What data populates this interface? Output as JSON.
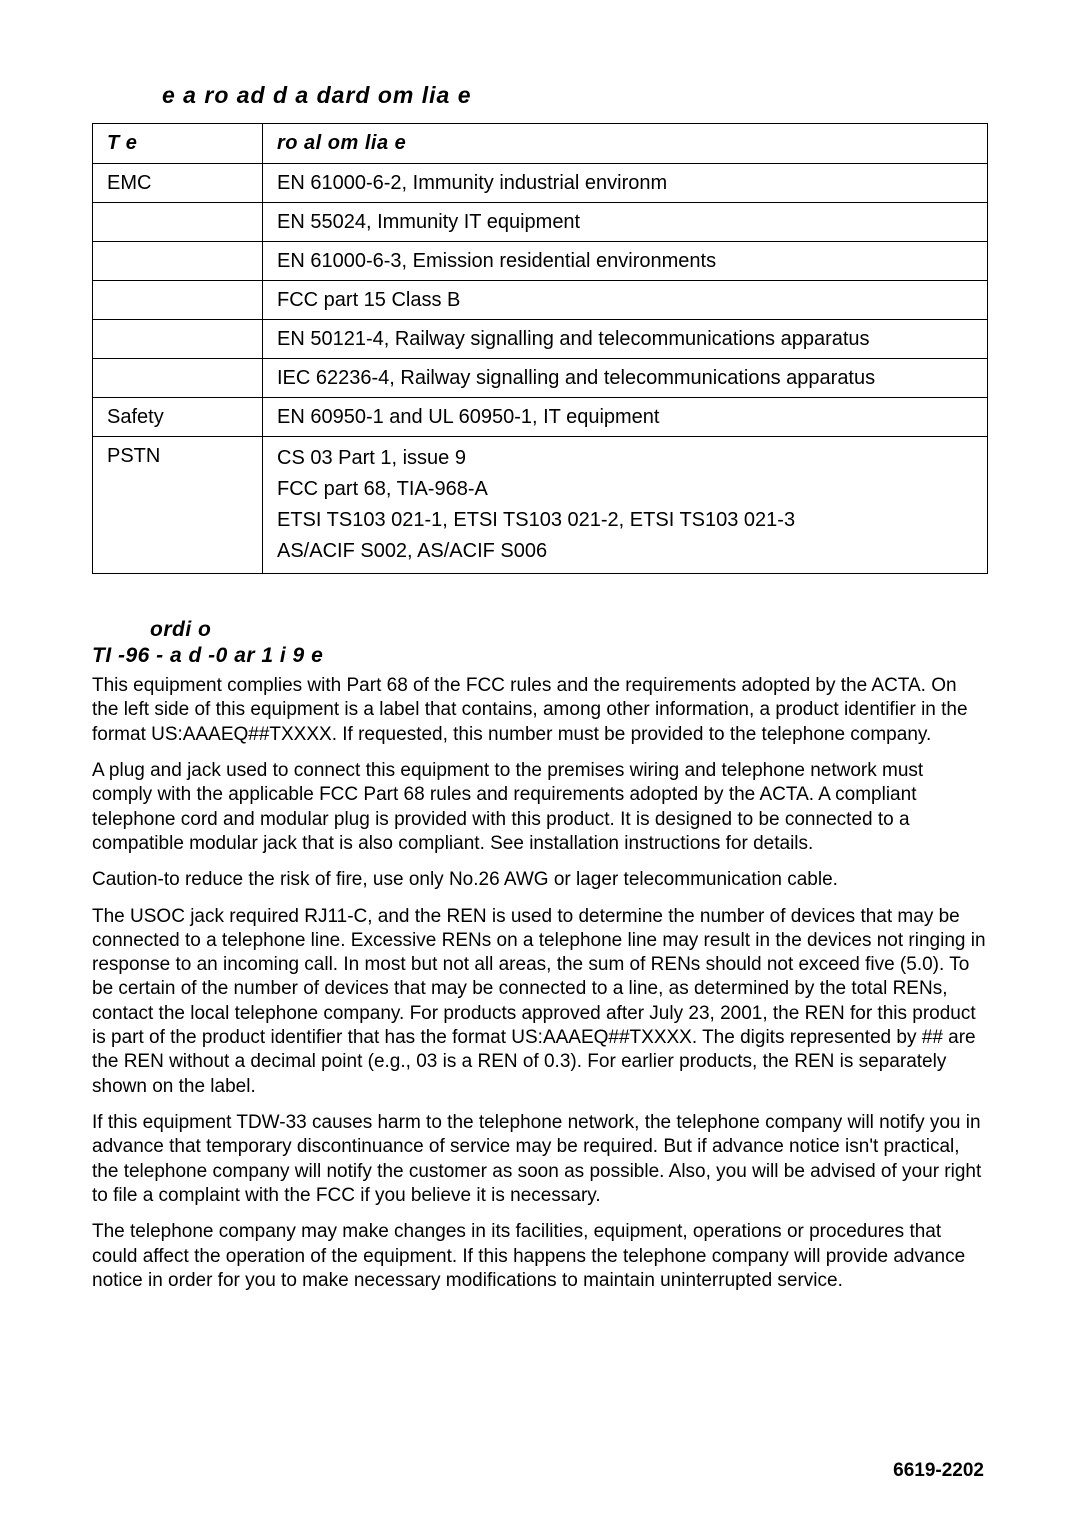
{
  "main_heading": "e   a    ro  ad  d    a   dard om   lia    e",
  "table": {
    "headers": {
      "type": "T    e",
      "compliance": "ro  al om   lia    e"
    },
    "rows": [
      {
        "type": "EMC",
        "value": "EN 61000-6-2, Immunity industrial environm"
      },
      {
        "type": "",
        "value": "EN 55024, Immunity IT equipment"
      },
      {
        "type": "",
        "value": "EN 61000-6-3, Emission residential environments"
      },
      {
        "type": "",
        "value": "FCC part 15 Class B"
      },
      {
        "type": "",
        "value": "EN 50121-4, Railway signalling and telecommunications apparatus"
      },
      {
        "type": "",
        "value": "IEC 62236-4, Railway signalling and telecommunications apparatus"
      },
      {
        "type": "Safety",
        "value": "EN 60950-1 and UL 60950-1, IT equipment"
      },
      {
        "type": "PSTN",
        "value": "CS 03 Part 1, issue 9\nFCC part 68, TIA-968-A\nETSI TS103 021-1, ETSI TS103 021-2, ETSI TS103 021-3\nAS/ACIF S002, AS/ACIF S006",
        "multi": true
      }
    ]
  },
  "subhead1": "ordi    o",
  "subhead2": "TI   -96  -  a  d     -0   ar 1 i     9 e",
  "paragraphs": [
    "This equipment complies with Part 68 of the FCC rules and the requirements adopted by the ACTA. On the left side of this equipment is a label that contains, among other information, a product identifier in the format US:AAAEQ##TXXXX.  If requested, this number must be provided to the telephone company.",
    "A plug and jack used to connect this equipment to the premises wiring and telephone network must comply with the applicable FCC Part 68 rules and requirements adopted by the ACTA. A compliant telephone cord and modular plug is provided with this product.  It is designed to be connected to a compatible modular jack that is also compliant.  See installation instructions for details.",
    "Caution-to reduce the risk of fire, use only No.26 AWG or lager telecommunication cable.",
    "The USOC jack required RJ11-C, and the REN is used to determine the number of devices that may be connected to a telephone line.  Excessive RENs on a telephone line may result in the devices not ringing in response to an incoming call. In most but not all areas, the sum of RENs should not exceed five (5.0). To be certain of the number of devices that may be connected to a line, as determined by the total RENs, contact the local telephone company.  For products approved after July 23, 2001, the REN for this product is part of the product identifier that has the format US:AAAEQ##TXXXX. The digits represented by ## are the REN without a decimal point (e.g., 03 is a REN of 0.3). For earlier products, the REN is separately shown on the label.",
    "If this equipment TDW-33 causes harm to the telephone network, the telephone company will notify you in advance that temporary discontinuance of service may be required.  But if advance notice isn't practical, the telephone company will notify the customer as soon as possible. Also, you will be advised of your right to file a complaint with the FCC if you believe it is necessary.",
    "The telephone company may make changes in its facilities, equipment, operations or procedures that could affect the operation of the equipment.  If this happens the telephone company will provide advance notice in order for you to make necessary modifications to maintain uninterrupted service."
  ],
  "docnum": "6619-2202"
}
